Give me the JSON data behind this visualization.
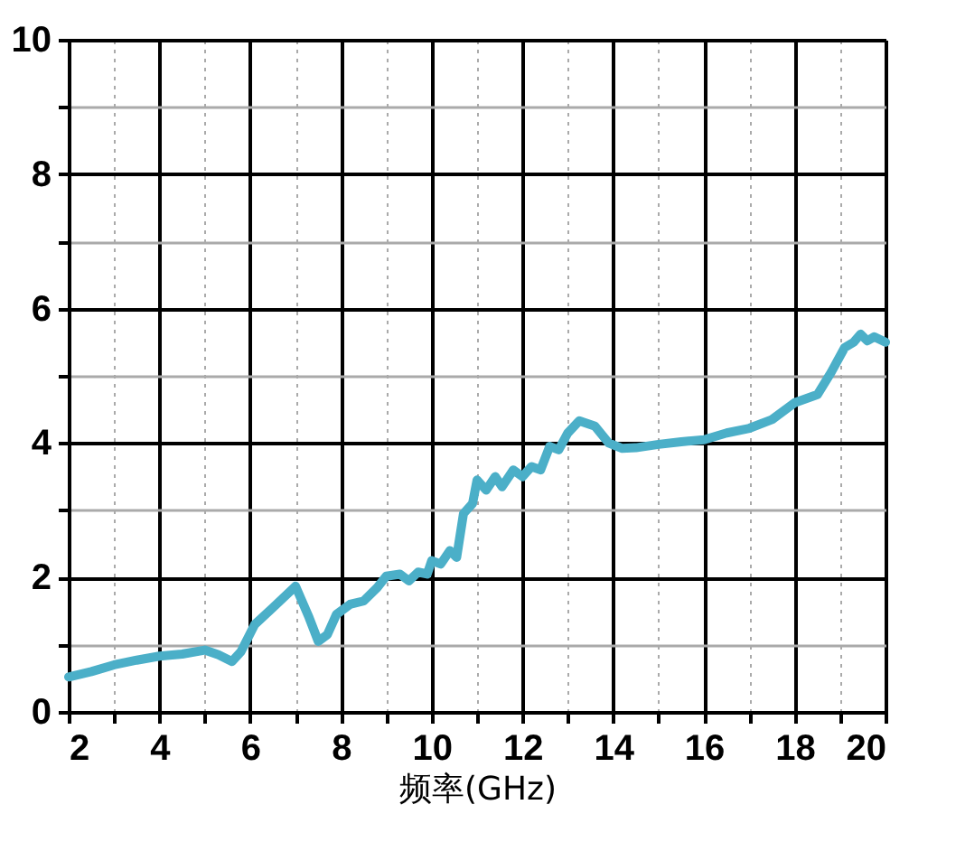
{
  "chart_data": {
    "type": "line",
    "xlabel": "频率(GHz)",
    "xlim": [
      2,
      20
    ],
    "ylim": [
      0,
      10
    ],
    "xticks": [
      2,
      {
        "value": 3,
        "label": null
      },
      4,
      {
        "value": 5,
        "label": null
      },
      6,
      {
        "value": 7,
        "label": null
      },
      8,
      {
        "value": 9,
        "label": null
      },
      10,
      {
        "value": 11,
        "label": null
      },
      12,
      {
        "value": 13,
        "label": null
      },
      14,
      {
        "value": 15,
        "label": null
      },
      16,
      {
        "value": 17,
        "label": null
      },
      18,
      {
        "value": 19,
        "label": null
      },
      20
    ],
    "yticks": [
      0,
      {
        "value": 1,
        "label": null
      },
      2,
      {
        "value": 3,
        "label": null
      },
      4,
      {
        "value": 5,
        "label": null
      },
      6,
      {
        "value": 7,
        "label": null
      },
      8,
      {
        "value": 9,
        "label": null
      },
      10
    ],
    "grid": true,
    "marker": "none",
    "line_style": "solid",
    "x": [
      2.0,
      2.5,
      3,
      3.5,
      4,
      4.5,
      5,
      5.3,
      5.6,
      5.8,
      6.1,
      6.5,
      7.0,
      7.3,
      7.5,
      7.7,
      7.9,
      8.2,
      8.5,
      8.8,
      9,
      9.3,
      9.5,
      9.7,
      9.9,
      10.0,
      10.2,
      10.4,
      10.55,
      10.7,
      10.9,
      11.0,
      11.2,
      11.4,
      11.55,
      11.8,
      12.0,
      12.2,
      12.4,
      12.6,
      12.8,
      13.0,
      13.25,
      13.6,
      13.9,
      14.2,
      14.5,
      15,
      15.5,
      16,
      16.5,
      17,
      17.5,
      18,
      18.5,
      18.8,
      19.1,
      19.3,
      19.45,
      19.6,
      19.75,
      20
    ],
    "series": [
      {
        "color": "#4bafc8",
        "values": [
          0.52,
          0.6,
          0.7,
          0.77,
          0.83,
          0.86,
          0.92,
          0.85,
          0.75,
          0.9,
          1.3,
          1.55,
          1.87,
          1.4,
          1.05,
          1.15,
          1.45,
          1.6,
          1.65,
          1.85,
          2.02,
          2.05,
          1.95,
          2.08,
          2.05,
          2.25,
          2.2,
          2.4,
          2.3,
          2.95,
          3.1,
          3.45,
          3.3,
          3.5,
          3.35,
          3.6,
          3.5,
          3.65,
          3.6,
          3.95,
          3.9,
          4.15,
          4.33,
          4.25,
          4.0,
          3.92,
          3.93,
          3.98,
          4.02,
          4.05,
          4.15,
          4.22,
          4.35,
          4.6,
          4.72,
          5.05,
          5.42,
          5.5,
          5.62,
          5.52,
          5.58,
          5.5
        ]
      }
    ]
  }
}
